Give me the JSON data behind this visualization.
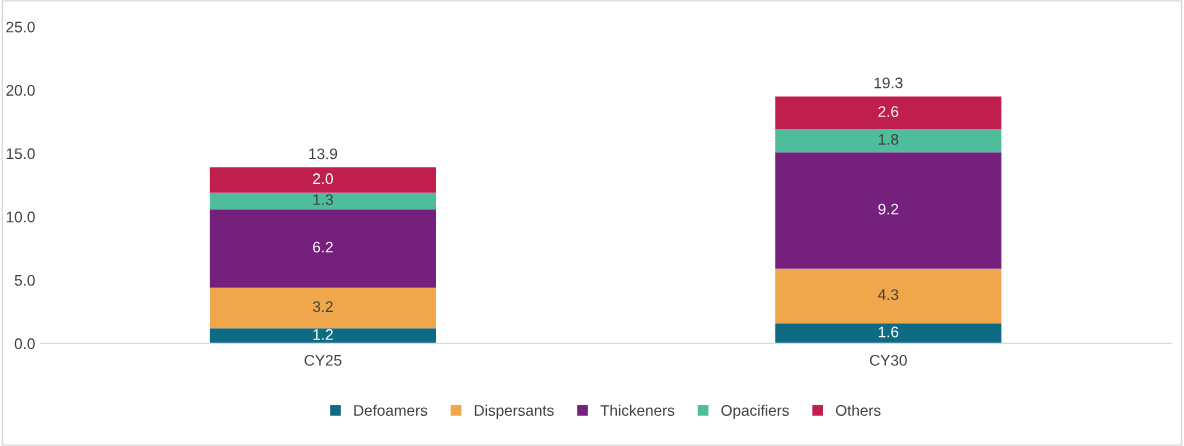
{
  "chart_data": {
    "type": "bar",
    "stacked": true,
    "categories": [
      "CY25",
      "CY30"
    ],
    "series": [
      {
        "name": "Defoamers",
        "color": "#0f6b84",
        "values": [
          1.2,
          1.6
        ]
      },
      {
        "name": "Dispersants",
        "color": "#f0a64a",
        "values": [
          3.2,
          4.3
        ]
      },
      {
        "name": "Thickeners",
        "color": "#76207d",
        "values": [
          6.2,
          9.2
        ]
      },
      {
        "name": "Opacifiers",
        "color": "#4dbd9c",
        "values": [
          1.3,
          1.8
        ]
      },
      {
        "name": "Others",
        "color": "#c01f4e",
        "values": [
          2.0,
          2.6
        ],
        "value_labels": [
          "2.0",
          "2.6"
        ]
      }
    ],
    "data_labels": true,
    "totals": [
      "13.9",
      "19.3"
    ],
    "ylim": [
      0,
      25
    ],
    "yticks": [
      {
        "value": 0,
        "label": "0.0"
      },
      {
        "value": 5,
        "label": "5.0"
      },
      {
        "value": 10,
        "label": "10.0"
      },
      {
        "value": 15,
        "label": "15.0"
      },
      {
        "value": 20,
        "label": "20.0"
      },
      {
        "value": 25,
        "label": "25.0"
      }
    ],
    "grid": false,
    "legend": "bottom"
  }
}
